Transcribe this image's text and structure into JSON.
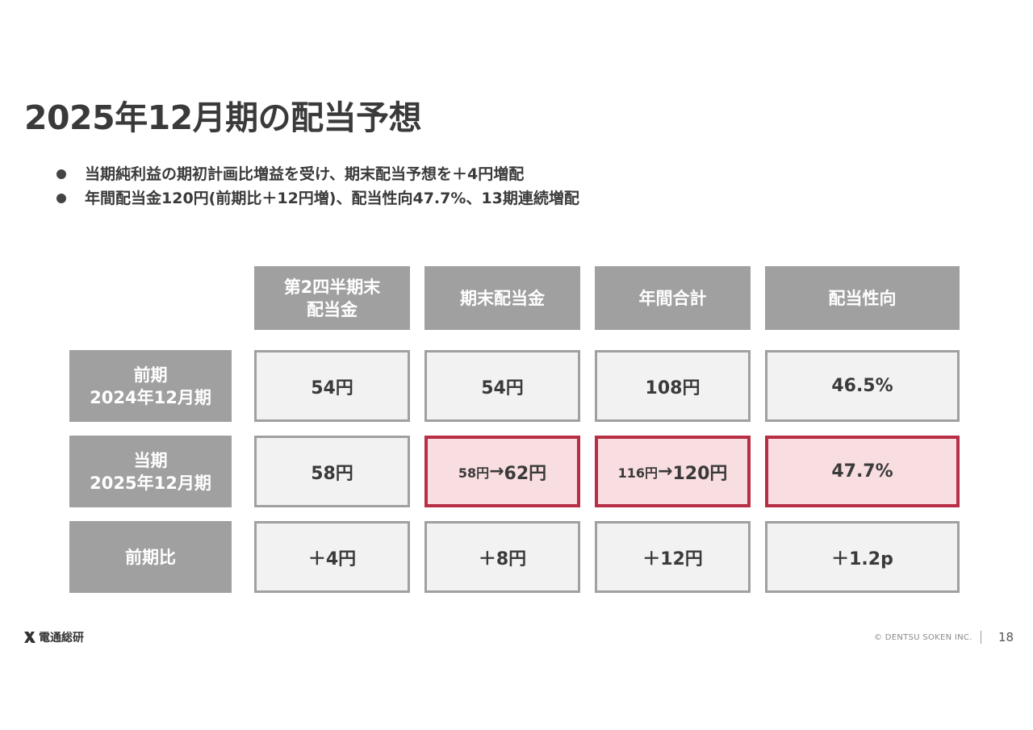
{
  "title": "2025年12月期の配当予想",
  "bullets": [
    "当期純利益の期初計画比増益を受け、期末配当予想を＋4円増配",
    "年間配当金120円(前期比＋12円増)、配当性向47.7%、13期連続増配"
  ],
  "table": {
    "columns": [
      "第2四半期末\n配当金",
      "期末配当金",
      "年間合計",
      "配当性向"
    ],
    "rows": [
      {
        "label": "前期\n2024年12月期",
        "cells": [
          "54円",
          "54円",
          "108円",
          "46.5%"
        ]
      },
      {
        "label": "当期\n2025年12月期",
        "cells": [
          "58円",
          "",
          "",
          "47.7%"
        ],
        "term_end_from": "58円",
        "term_end_to": "62円",
        "annual_from": "116円",
        "annual_to": "120円",
        "arrow": "→"
      },
      {
        "label": "前期比",
        "cells": [
          "＋4円",
          "＋8円",
          "＋12円",
          "＋1.2p"
        ]
      }
    ]
  },
  "colors": {
    "header_gray": "#a0a0a0",
    "highlight_border": "#b72e45",
    "highlight_fill": "#f8dde1"
  },
  "footer": {
    "logo_icon": "dentsu-soken-x-icon",
    "logo_text": "電通総研",
    "copyright": "© DENTSU SOKEN INC.",
    "page_number": "18"
  }
}
